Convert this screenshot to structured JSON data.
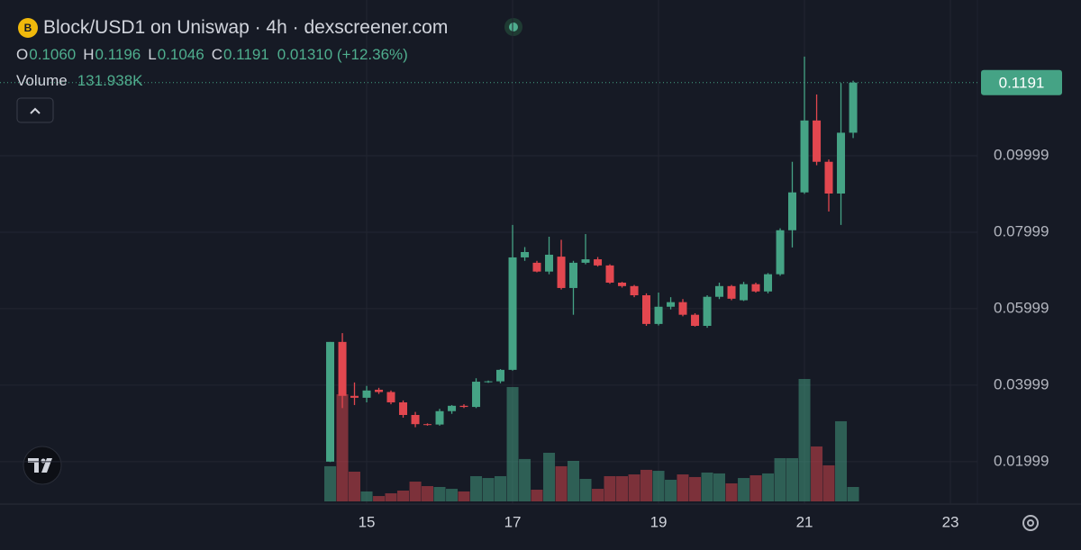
{
  "chart_data": {
    "type": "candlestick",
    "icon": "B",
    "title": "Block/USD1 on Uniswap · 4h · dexscreener.com",
    "ohlc_legend": [
      [
        "O",
        "0.1060"
      ],
      [
        "H",
        "0.1196"
      ],
      [
        "L",
        "0.1046"
      ],
      [
        "C",
        "0.1191"
      ]
    ],
    "change": "0.01310 (+12.36%)",
    "volume_title": "Volume",
    "volume_value": "131.938K",
    "price_tag": "0.1191",
    "up_color": "#45a385",
    "down_color": "#e2474f",
    "grid": true,
    "x": [
      14.5,
      14.667,
      14.833,
      15,
      15.167,
      15.333,
      15.5,
      15.667,
      15.833,
      16,
      16.167,
      16.333,
      16.5,
      16.667,
      16.833,
      17,
      17.167,
      17.333,
      17.5,
      17.667,
      17.833,
      18,
      18.167,
      18.333,
      18.5,
      18.667,
      18.833,
      19,
      19.167,
      19.333,
      19.5,
      19.667,
      19.833,
      20,
      20.167,
      20.333,
      20.5,
      20.667,
      20.833,
      21,
      21.167,
      21.333,
      21.5,
      21.667
    ],
    "open": [
      0.02,
      0.0513,
      0.0372,
      0.0367,
      0.0388,
      0.0382,
      0.0355,
      0.0322,
      0.0298,
      0.0297,
      0.0332,
      0.0346,
      0.0343,
      0.0409,
      0.041,
      0.044,
      0.0734,
      0.072,
      0.0697,
      0.0736,
      0.0654,
      0.072,
      0.0729,
      0.0713,
      0.0668,
      0.0659,
      0.0635,
      0.056,
      0.0605,
      0.0617,
      0.0584,
      0.0555,
      0.0631,
      0.0659,
      0.0622,
      0.0664,
      0.0645,
      0.069,
      0.0805,
      0.0904,
      0.1092,
      0.0984,
      0.0901,
      0.106
    ],
    "high": [
      0.0513,
      0.0536,
      0.0407,
      0.0398,
      0.0393,
      0.0386,
      0.036,
      0.033,
      0.03,
      0.0338,
      0.0348,
      0.035,
      0.0418,
      0.0412,
      0.0442,
      0.0819,
      0.0761,
      0.0725,
      0.0788,
      0.078,
      0.0725,
      0.0795,
      0.0735,
      0.0716,
      0.067,
      0.0662,
      0.064,
      0.0642,
      0.063,
      0.0625,
      0.0588,
      0.0635,
      0.0668,
      0.0662,
      0.067,
      0.0668,
      0.0693,
      0.081,
      0.0984,
      0.1259,
      0.116,
      0.099,
      0.119,
      0.1196
    ],
    "low": [
      0.0199,
      0.034,
      0.0348,
      0.0355,
      0.0377,
      0.035,
      0.0315,
      0.029,
      0.0294,
      0.0294,
      0.0325,
      0.034,
      0.034,
      0.0406,
      0.0405,
      0.0438,
      0.0725,
      0.0695,
      0.069,
      0.065,
      0.0584,
      0.0716,
      0.071,
      0.0665,
      0.0655,
      0.063,
      0.0555,
      0.0556,
      0.0598,
      0.058,
      0.0553,
      0.055,
      0.0625,
      0.0622,
      0.062,
      0.0642,
      0.064,
      0.0686,
      0.076,
      0.09,
      0.0975,
      0.0854,
      0.0819,
      0.1046
    ],
    "close": [
      0.0513,
      0.0372,
      0.0367,
      0.0386,
      0.0382,
      0.0355,
      0.0322,
      0.0298,
      0.0297,
      0.0332,
      0.0346,
      0.0343,
      0.0409,
      0.041,
      0.044,
      0.0734,
      0.0748,
      0.0697,
      0.0741,
      0.0654,
      0.072,
      0.0729,
      0.0713,
      0.0668,
      0.0659,
      0.0635,
      0.056,
      0.0605,
      0.0617,
      0.0584,
      0.0555,
      0.0631,
      0.0659,
      0.0626,
      0.0664,
      0.0645,
      0.069,
      0.0805,
      0.0904,
      0.1092,
      0.0984,
      0.0901,
      0.106,
      0.1191
    ],
    "volume": [
      322000,
      981000,
      272000,
      91000,
      49000,
      74000,
      99000,
      181000,
      140000,
      132000,
      115000,
      91000,
      231000,
      214000,
      231000,
      1047000,
      388000,
      107000,
      445000,
      322000,
      371000,
      206000,
      115000,
      231000,
      231000,
      247000,
      289000,
      280000,
      198000,
      247000,
      223000,
      264000,
      256000,
      165000,
      214000,
      239000,
      256000,
      396000,
      396000,
      1121000,
      503000,
      330000,
      734000,
      131938
    ],
    "xlim": [
      9.975,
      23.37
    ],
    "xticks": [
      15,
      17,
      19,
      21,
      23
    ],
    "ylim": [
      0.0089,
      0.1407
    ],
    "yticks": [
      0.01999,
      0.03999,
      0.05999,
      0.07999,
      0.09999
    ]
  }
}
